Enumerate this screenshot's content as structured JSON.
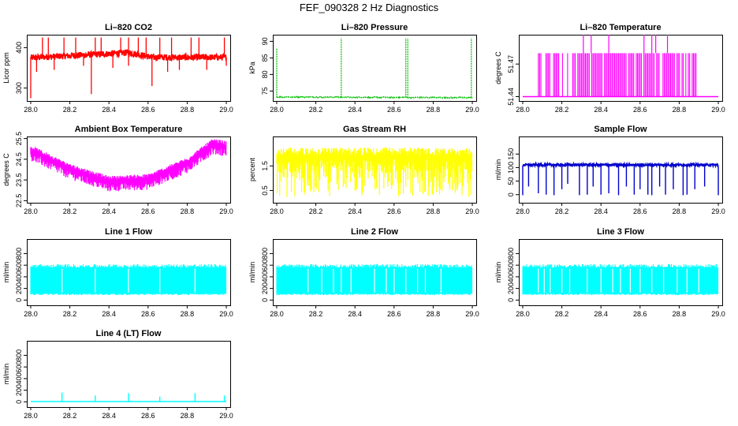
{
  "title": "FEF_090328  2 Hz Diagnostics",
  "x_ticks": [
    "28.0",
    "28.2",
    "28.4",
    "28.6",
    "28.8",
    "29.0"
  ],
  "xlim": [
    27.98,
    29.02
  ],
  "chart_data": [
    {
      "id": "co2",
      "type": "line",
      "title": "Li–820 CO2",
      "ylabel": "Licor ppm",
      "color": "#ff0000",
      "ylim": [
        268,
        432
      ],
      "yticks": [
        "300",
        "400"
      ],
      "series": {
        "kind": "co2",
        "base": [
          [
            28.0,
            375
          ],
          [
            28.2,
            380
          ],
          [
            28.4,
            385
          ],
          [
            28.5,
            388
          ],
          [
            28.62,
            376
          ],
          [
            29.0,
            376
          ]
        ],
        "noise": 8
      }
    },
    {
      "id": "press",
      "type": "line",
      "title": "Li–820 Pressure",
      "ylabel": "kPa",
      "color": "#00c000",
      "ylim": [
        72,
        92
      ],
      "yticks": [
        "75",
        "80",
        "85",
        "90"
      ],
      "series": {
        "kind": "pressure",
        "base": [
          [
            28.0,
            73.2
          ],
          [
            29.0,
            73.0
          ]
        ],
        "noise": 0.15
      }
    },
    {
      "id": "temp",
      "type": "line",
      "title": "Li–820 Temperature",
      "ylabel": "degrees C",
      "color": "#ff00ff",
      "ylim": [
        51.436,
        51.497
      ],
      "yticks": [
        "51.44",
        "51.47"
      ],
      "series": {
        "kind": "temp",
        "low": 51.44,
        "high": 51.48,
        "spike": 51.497
      }
    },
    {
      "id": "abox",
      "type": "line",
      "title": "Ambient Box Temperature",
      "ylabel": "degrees C",
      "color": "#ff00ff",
      "ylim": [
        22.4,
        25.6
      ],
      "yticks": [
        "22.5",
        "23.5",
        "24.5",
        "25.5"
      ],
      "series": {
        "kind": "band",
        "base": [
          [
            28.0,
            24.8
          ],
          [
            28.2,
            23.9
          ],
          [
            28.4,
            23.3
          ],
          [
            28.6,
            23.4
          ],
          [
            28.8,
            24.2
          ],
          [
            28.93,
            25.1
          ],
          [
            29.0,
            25.0
          ]
        ],
        "noise": 0.45
      }
    },
    {
      "id": "rh",
      "type": "line",
      "title": "Gas Stream RH",
      "ylabel": "percent",
      "color": "#ffff00",
      "ylim": [
        0.0,
        2.7
      ],
      "yticks": [
        "0.5",
        "1.5"
      ],
      "series": {
        "kind": "rh",
        "base": [
          [
            28.0,
            2.1
          ],
          [
            29.0,
            2.1
          ]
        ],
        "noise": 0.3
      }
    },
    {
      "id": "sflow",
      "type": "line",
      "title": "Sample Flow",
      "ylabel": "ml/min",
      "color": "#0000cc",
      "ylim": [
        -30,
        215
      ],
      "yticks": [
        "0",
        "50",
        "100",
        "150"
      ],
      "series": {
        "kind": "sample",
        "base": [
          [
            28.0,
            110
          ],
          [
            29.0,
            110
          ]
        ],
        "noise": 4
      }
    },
    {
      "id": "l1",
      "type": "line",
      "title": "Line 1 Flow",
      "ylabel": "ml/min",
      "color": "#00ffff",
      "ylim": [
        -90,
        1050
      ],
      "yticks": [
        "0",
        "200",
        "400",
        "600",
        "800"
      ],
      "series": {
        "kind": "lineflow",
        "low": 110,
        "high": 560
      }
    },
    {
      "id": "l2",
      "type": "line",
      "title": "Line 2 Flow",
      "ylabel": "ml/min",
      "color": "#00ffff",
      "ylim": [
        -90,
        1050
      ],
      "yticks": [
        "0",
        "200",
        "400",
        "600",
        "800"
      ],
      "series": {
        "kind": "lineflow",
        "low": 110,
        "high": 560
      }
    },
    {
      "id": "l3",
      "type": "line",
      "title": "Line 3 Flow",
      "ylabel": "ml/min",
      "color": "#00ffff",
      "ylim": [
        -90,
        1050
      ],
      "yticks": [
        "0",
        "200",
        "400",
        "600",
        "800"
      ],
      "series": {
        "kind": "lineflow",
        "low": 110,
        "high": 560
      }
    },
    {
      "id": "l4",
      "type": "line",
      "title": "Line 4 (LT) Flow",
      "ylabel": "ml/min",
      "color": "#00ffff",
      "ylim": [
        -90,
        1050
      ],
      "yticks": [
        "0",
        "200",
        "400",
        "600",
        "800"
      ],
      "series": {
        "kind": "lt",
        "base": [
          [
            28.0,
            5
          ],
          [
            29.0,
            5
          ]
        ],
        "spikes": [
          [
            28.16,
            160
          ],
          [
            28.33,
            110
          ],
          [
            28.5,
            150
          ],
          [
            28.66,
            90
          ],
          [
            28.84,
            150
          ],
          [
            28.99,
            110
          ]
        ]
      }
    }
  ]
}
